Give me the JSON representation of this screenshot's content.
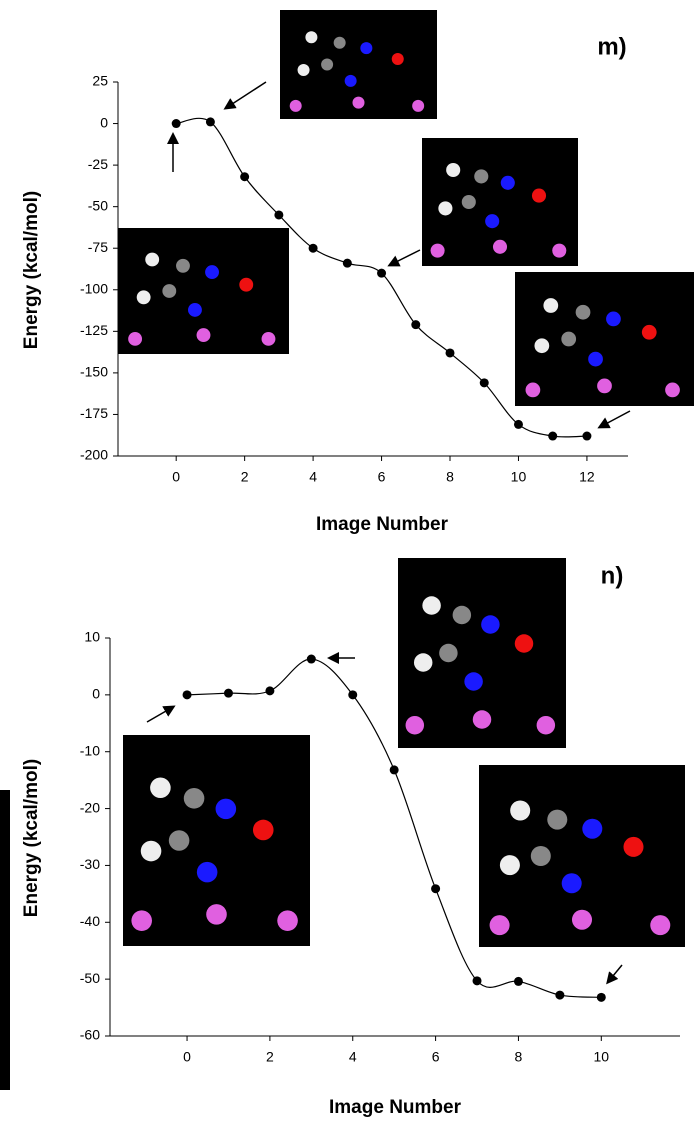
{
  "chart_data": [
    {
      "type": "line",
      "title": "m)",
      "x_label": "Image Number",
      "y_label": "Energy (kcal/mol)",
      "x": [
        0,
        1,
        2,
        3,
        4,
        5,
        6,
        7,
        8,
        9,
        10,
        11,
        12
      ],
      "series": [
        {
          "color": "#000000",
          "values": [
            0,
            1,
            -32,
            -55,
            -75,
            -84,
            -90,
            -121,
            -138,
            -156,
            -181,
            -188,
            -188
          ]
        }
      ],
      "xlim": [
        -1.7,
        13.2
      ],
      "xticks": [
        0,
        2,
        4,
        6,
        8,
        10,
        12
      ],
      "ylim": [
        -200,
        25
      ],
      "yticks": [
        25,
        0,
        -25,
        -50,
        -75,
        -100,
        -125,
        -150,
        -175,
        -200
      ],
      "grid": false
    },
    {
      "type": "line",
      "title": "n)",
      "x_label": "Image Number",
      "y_label": "Energy (kcal/mol)",
      "x": [
        0,
        1,
        2,
        3,
        4,
        5,
        6,
        7,
        8,
        9,
        10
      ],
      "series": [
        {
          "color": "#000000",
          "values": [
            0,
            0.3,
            0.7,
            6.3,
            0,
            -13.2,
            -34.1,
            -50.3,
            -50.4,
            -52.8,
            -53.2
          ]
        }
      ],
      "xlim": [
        -1.86,
        11.9
      ],
      "xticks": [
        0,
        2,
        4,
        6,
        8,
        10
      ],
      "ylim": [
        -60,
        10
      ],
      "yticks": [
        10,
        0,
        -10,
        -20,
        -30,
        -40,
        -50,
        -60
      ],
      "grid": false
    }
  ]
}
